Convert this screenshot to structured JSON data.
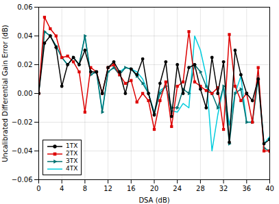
{
  "chart_data": {
    "type": "line",
    "xlabel": "DSA (dB)",
    "ylabel": "Uncalibrated Differential Gain Error (dB)",
    "x": [
      0,
      1,
      2,
      3,
      4,
      5,
      6,
      7,
      8,
      9,
      10,
      11,
      12,
      13,
      14,
      15,
      16,
      17,
      18,
      19,
      20,
      21,
      22,
      23,
      24,
      25,
      26,
      27,
      28,
      29,
      30,
      31,
      32,
      33,
      34,
      35,
      36,
      37,
      38,
      39,
      40
    ],
    "series": [
      {
        "name": "1TX",
        "color": "#000000",
        "marker": "circle",
        "values": [
          0.0,
          0.035,
          0.04,
          0.032,
          0.005,
          0.02,
          0.025,
          0.02,
          0.03,
          0.015,
          0.015,
          0.0,
          0.018,
          0.022,
          0.015,
          0.0,
          0.017,
          0.013,
          0.024,
          0.0,
          -0.015,
          0.007,
          0.022,
          -0.016,
          0.02,
          0.0,
          0.018,
          0.02,
          0.003,
          -0.01,
          0.025,
          0.0,
          0.022,
          -0.034,
          0.03,
          0.013,
          0.0,
          -0.005,
          0.01,
          -0.035,
          -0.032
        ]
      },
      {
        "name": "2TX",
        "color": "#dd0000",
        "marker": "square",
        "values": [
          0.0,
          0.053,
          0.045,
          0.04,
          0.025,
          0.026,
          0.022,
          0.015,
          -0.013,
          0.018,
          0.015,
          0.0,
          0.018,
          0.02,
          0.013,
          0.007,
          0.009,
          -0.006,
          0.0,
          -0.005,
          -0.025,
          -0.005,
          0.008,
          -0.023,
          0.005,
          0.008,
          0.043,
          0.008,
          0.005,
          0.002,
          0.0,
          0.004,
          -0.025,
          0.041,
          0.005,
          -0.005,
          0.0,
          -0.02,
          0.018,
          -0.04,
          -0.04
        ]
      },
      {
        "name": "3TX",
        "color": "#007070",
        "marker": "triangle-right",
        "values": [
          0.0,
          0.043,
          0.04,
          0.033,
          0.025,
          0.02,
          0.025,
          0.02,
          0.04,
          0.013,
          0.015,
          -0.013,
          0.015,
          0.018,
          0.013,
          0.018,
          0.017,
          0.012,
          0.007,
          0.0,
          -0.014,
          0.0,
          0.005,
          -0.01,
          -0.01,
          0.003,
          0.0,
          0.02,
          0.015,
          0.005,
          0.0,
          -0.01,
          0.005,
          -0.035,
          0.0,
          0.003,
          -0.02,
          -0.02,
          0.01,
          -0.038,
          -0.04
        ]
      },
      {
        "name": "4TX",
        "color": "#00ccdd",
        "marker": "none",
        "values": [
          0.0,
          0.043,
          0.04,
          0.033,
          0.025,
          0.02,
          0.025,
          0.02,
          0.04,
          0.013,
          0.015,
          -0.012,
          0.015,
          0.018,
          0.015,
          0.018,
          0.017,
          0.015,
          0.01,
          0.0,
          -0.013,
          0.002,
          0.005,
          -0.012,
          -0.013,
          -0.007,
          -0.01,
          0.04,
          0.03,
          0.012,
          -0.04,
          -0.015,
          0.005,
          -0.022,
          0.0,
          0.012,
          -0.02,
          -0.02,
          0.013,
          -0.035,
          -0.03
        ]
      }
    ],
    "xlim": [
      0,
      40
    ],
    "ylim": [
      -0.06,
      0.06
    ],
    "xticks": [
      0,
      4,
      8,
      12,
      16,
      20,
      24,
      28,
      32,
      36,
      40
    ],
    "yticks": [
      -0.06,
      -0.04,
      -0.02,
      {
        "value": 0,
        "label": "0.00"
      },
      0.02,
      0.04,
      0.06
    ],
    "grid": true,
    "legend": "lower left"
  }
}
